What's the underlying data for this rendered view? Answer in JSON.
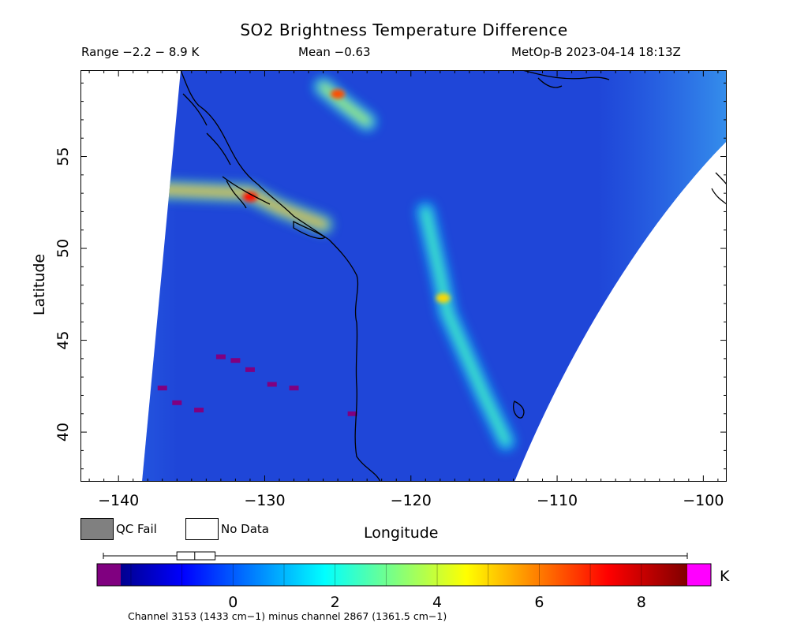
{
  "header": {
    "title": "SO2 Brightness Temperature Difference",
    "range": "Range −2.2 − 8.9 K",
    "mean": "Mean −0.63",
    "satellite": "MetOp-B 2023-04-14 18:13Z"
  },
  "axes": {
    "xlabel": "Longitude",
    "ylabel": "Latitude",
    "xticks": [
      {
        "value": -140,
        "label": "−140"
      },
      {
        "value": -130,
        "label": "−130"
      },
      {
        "value": -120,
        "label": "−120"
      },
      {
        "value": -110,
        "label": "−110"
      },
      {
        "value": -100,
        "label": "−100"
      }
    ],
    "yticks": [
      {
        "value": 40,
        "label": "40"
      },
      {
        "value": 45,
        "label": "45"
      },
      {
        "value": 50,
        "label": "50"
      },
      {
        "value": 55,
        "label": "55"
      }
    ],
    "xlim": [
      -142.6,
      -98.4
    ],
    "ylim": [
      37.3,
      59.7
    ]
  },
  "legend": {
    "qc_fail": "QC Fail",
    "no_data": "No Data",
    "qc_color": "#808080",
    "nodata_color": "#ffffff"
  },
  "colorbar": {
    "unit": "K",
    "ticks": [
      {
        "value": 0,
        "label": "0"
      },
      {
        "value": 2,
        "label": "2"
      },
      {
        "value": 4,
        "label": "4"
      },
      {
        "value": 6,
        "label": "6"
      },
      {
        "value": 8,
        "label": "8"
      }
    ],
    "range": [
      -2.2,
      8.9
    ],
    "under_color": "#800080",
    "over_color": "#ff00ff",
    "box_stats": {
      "whisker_low": -2.2,
      "q1": -1.1,
      "median": -0.75,
      "q3": -0.35,
      "whisker_high": 8.9
    }
  },
  "footnote": "Channel 3153 (1433 cm−1) minus channel 2867 (1361.5 cm−1)",
  "map": {
    "background_color": "#1f46d8",
    "features": [
      {
        "name": "coastal SO2 plume",
        "value": 5.2,
        "points": [
          [
            -137,
            53.2
          ],
          [
            -131,
            53.0
          ],
          [
            -129,
            52.2
          ],
          [
            -126,
            51.3
          ]
        ]
      },
      {
        "name": "northern plume",
        "value": 3.8,
        "points": [
          [
            -126,
            58.8
          ],
          [
            -124.5,
            57.8
          ],
          [
            -123,
            56.9
          ]
        ]
      },
      {
        "name": "inland plume",
        "value": 2.6,
        "points": [
          [
            -119,
            52
          ],
          [
            -118,
            48.5
          ],
          [
            -117.5,
            46.5
          ],
          [
            -115,
            42
          ],
          [
            -113.5,
            39.5
          ]
        ]
      }
    ],
    "hotspots": [
      {
        "lon": -117.8,
        "lat": 47.3,
        "value": 5.0
      },
      {
        "lon": -125,
        "lat": 58.4,
        "value": 6.5
      },
      {
        "lon": -131,
        "lat": 52.8,
        "value": 7.2
      }
    ],
    "negative_pixels": [
      {
        "lon": -133,
        "lat": 44.1
      },
      {
        "lon": -132,
        "lat": 43.9
      },
      {
        "lon": -131,
        "lat": 43.4
      },
      {
        "lon": -129.5,
        "lat": 42.6
      },
      {
        "lon": -128,
        "lat": 42.4
      },
      {
        "lon": -137,
        "lat": 42.4
      },
      {
        "lon": -136,
        "lat": 41.6
      },
      {
        "lon": -134.5,
        "lat": 41.2
      },
      {
        "lon": -124,
        "lat": 41.0
      }
    ]
  }
}
